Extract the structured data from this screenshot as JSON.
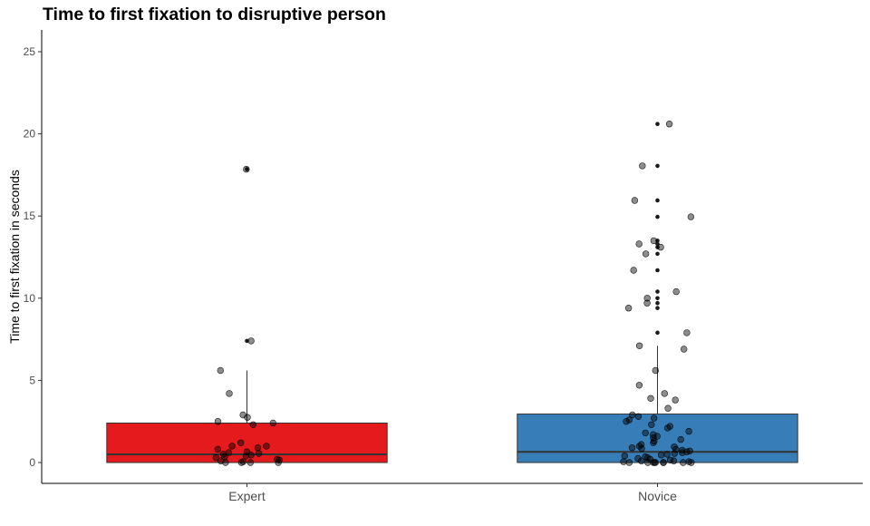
{
  "title": "Time to first fixation to disruptive person",
  "chart_data": {
    "type": "boxplot",
    "title": "Time to first fixation to disruptive person",
    "xlabel": "",
    "ylabel": "Time to first fixation in seconds",
    "categories": [
      "Expert",
      "Novice"
    ],
    "ylim": [
      -1.2,
      26.3
    ],
    "yticks": [
      0,
      5,
      10,
      15,
      20,
      25
    ],
    "grid": false,
    "legend": "none",
    "groups": [
      {
        "name": "Expert",
        "color": "#e41a1c",
        "min": 0,
        "q1": 0,
        "median": 0.5,
        "q3": 2.4,
        "whisker_high": 5.6,
        "outliers": [
          7.4,
          17.85
        ],
        "points": [
          17.85,
          7.4,
          5.6,
          4.2,
          2.9,
          2.75,
          2.5,
          2.4,
          2.3,
          1.2,
          1.0,
          1.0,
          0.9,
          0.8,
          0.65,
          0.6,
          0.55,
          0.5,
          0.45,
          0.4,
          0.35,
          0.3,
          0.2,
          0.15,
          0.1,
          0.05,
          0.0,
          0.0,
          0.0,
          0.0
        ]
      },
      {
        "name": "Novice",
        "color": "#377eb8",
        "min": 0,
        "q1": 0,
        "median": 0.65,
        "q3": 2.95,
        "whisker_high": 7.1,
        "outliers": [
          7.9,
          9.4,
          9.7,
          10.0,
          10.4,
          11.7,
          12.7,
          13.1,
          13.3,
          13.5,
          14.95,
          15.95,
          18.05,
          20.6
        ],
        "points": [
          20.6,
          18.05,
          15.95,
          14.95,
          13.5,
          13.3,
          13.1,
          12.7,
          11.7,
          10.4,
          10.0,
          9.7,
          9.4,
          7.9,
          7.1,
          6.9,
          5.6,
          4.7,
          4.2,
          3.9,
          3.8,
          3.3,
          2.9,
          2.8,
          2.7,
          2.6,
          2.5,
          2.3,
          2.2,
          2.1,
          1.9,
          1.8,
          1.7,
          1.6,
          1.5,
          1.4,
          1.3,
          1.2,
          1.1,
          1.0,
          0.95,
          0.9,
          0.85,
          0.8,
          0.75,
          0.7,
          0.65,
          0.6,
          0.55,
          0.5,
          0.45,
          0.4,
          0.35,
          0.3,
          0.25,
          0.2,
          0.15,
          0.1,
          0.1,
          0.05,
          0.05,
          0.0,
          0.0,
          0.0,
          0.0,
          0.0,
          0.0,
          0.0,
          0.0,
          0.0
        ]
      }
    ]
  }
}
